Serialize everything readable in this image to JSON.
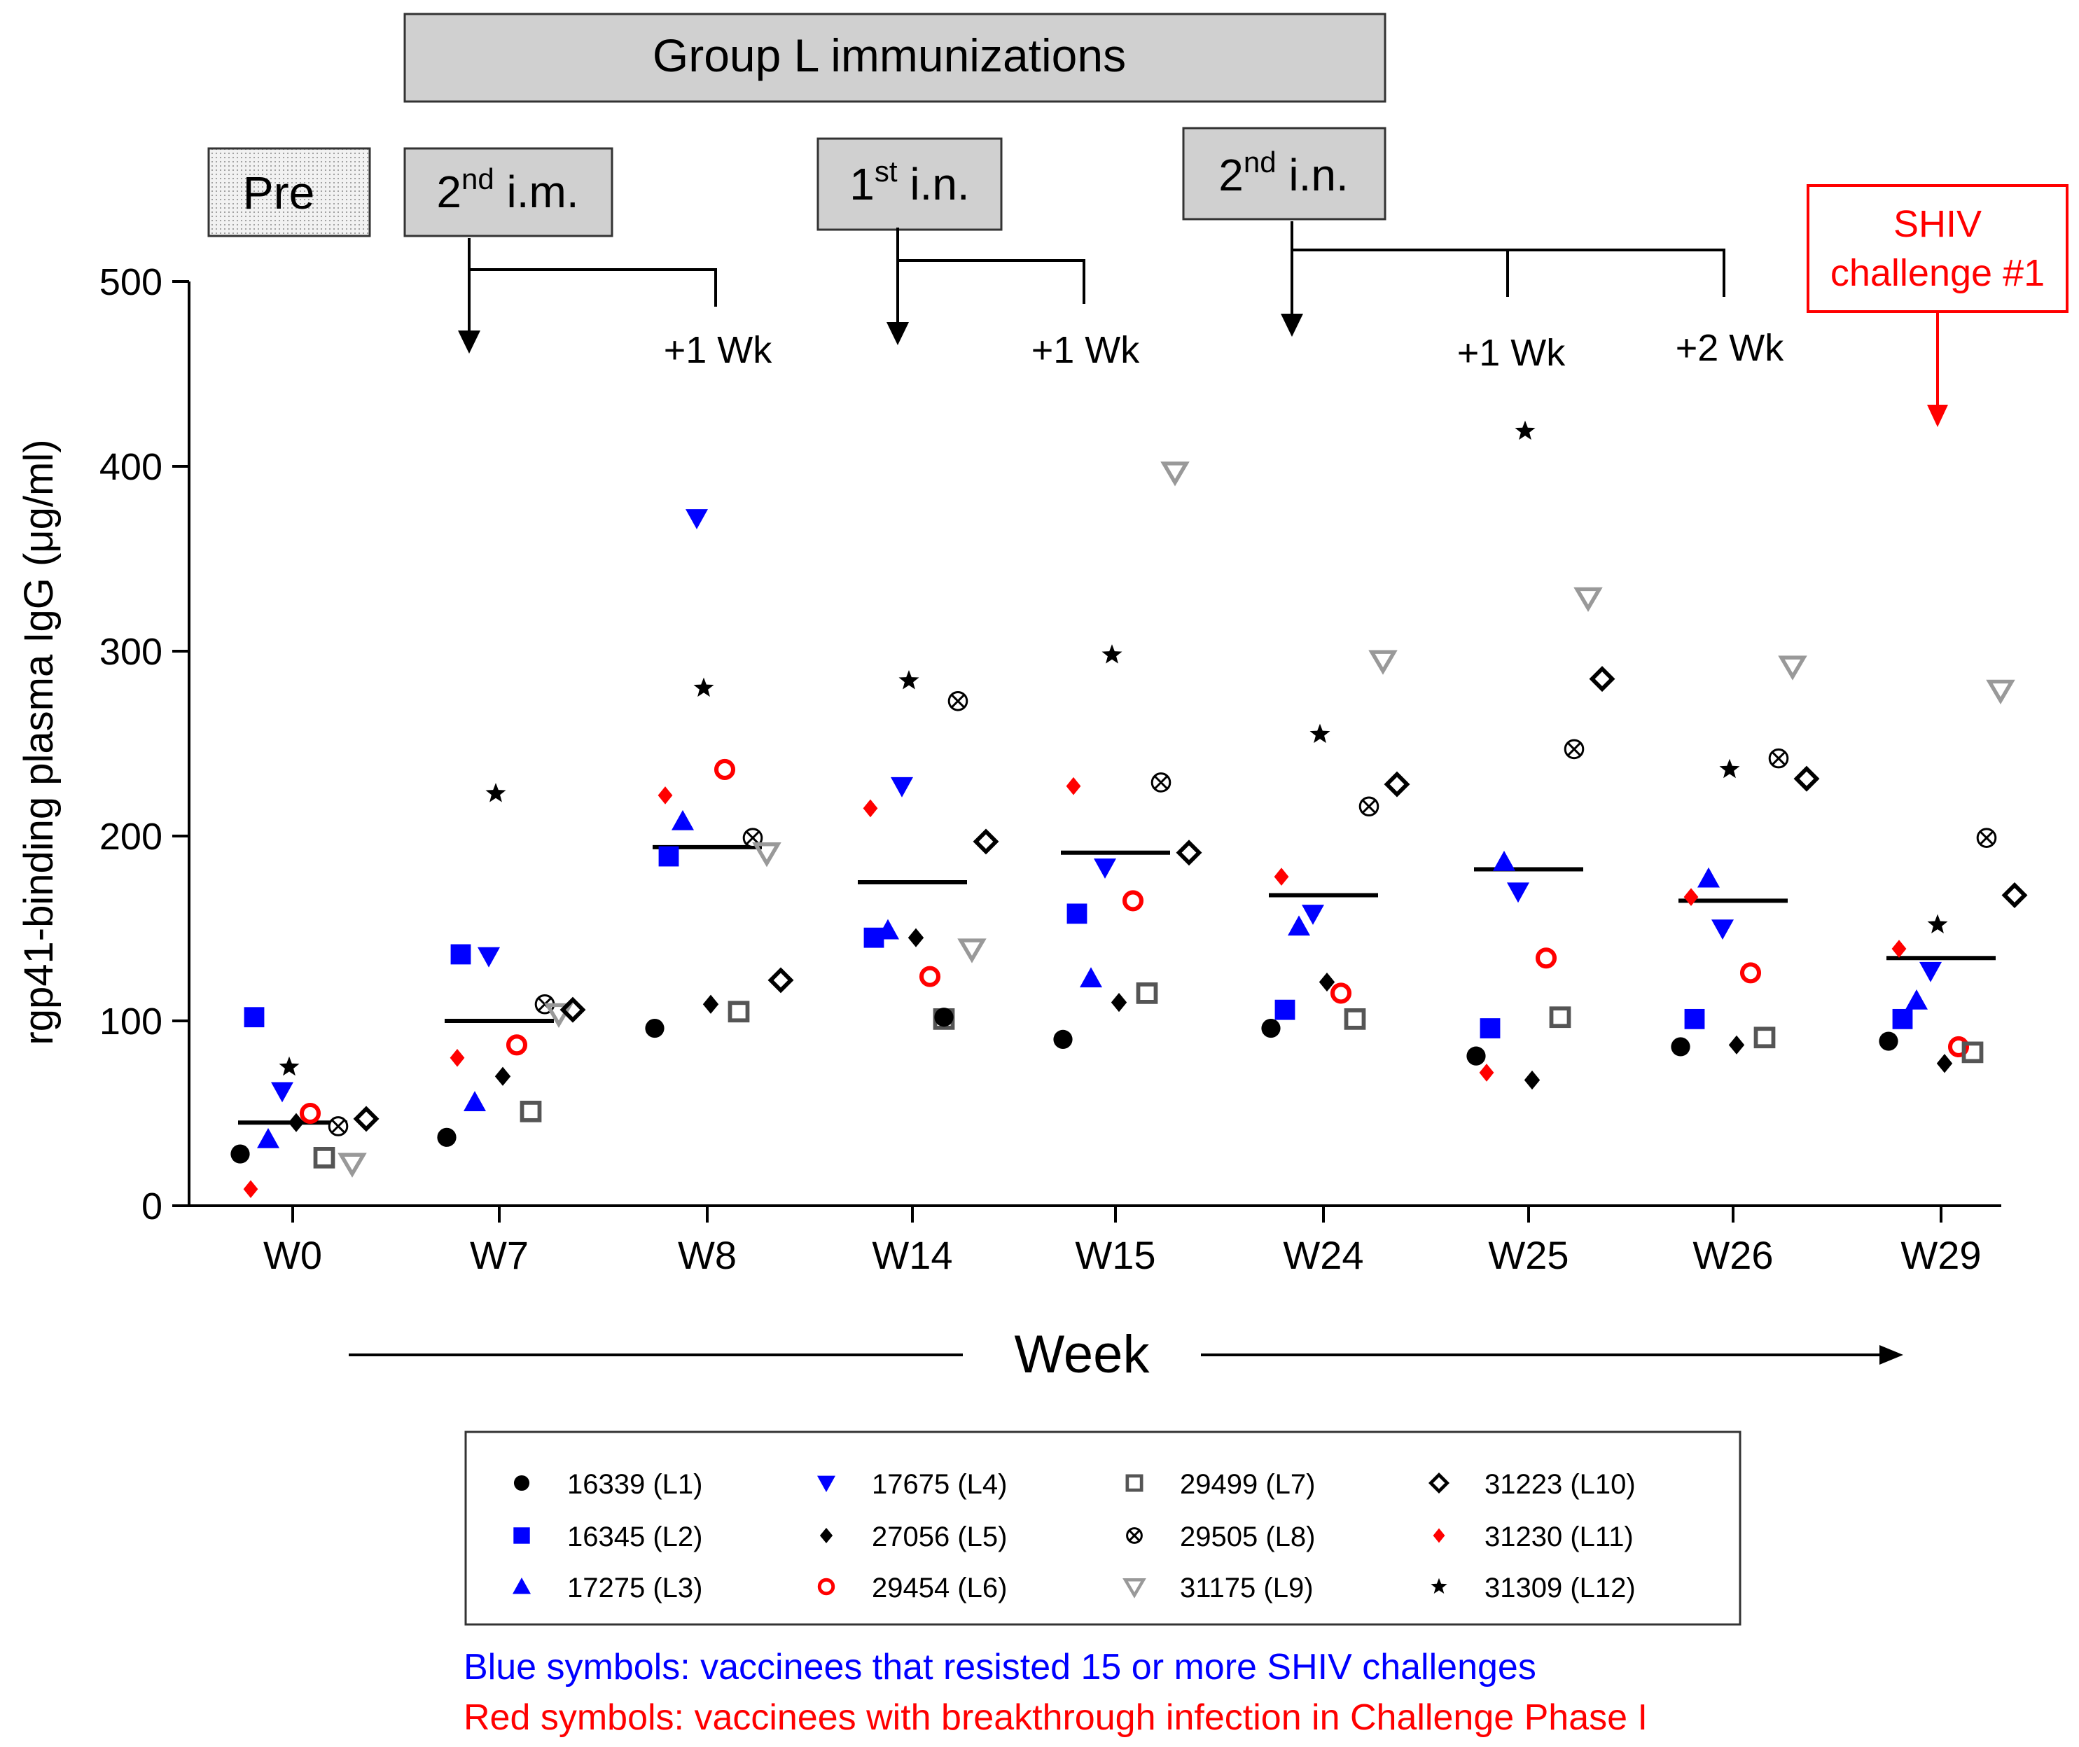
{
  "chart_data": {
    "type": "scatter",
    "title": "Group L immunizations",
    "ylabel": "rgp41-binding plasma IgG (μg/ml)",
    "xlabel": "Week",
    "ylim": [
      0,
      500
    ],
    "yticks": [
      0,
      100,
      200,
      300,
      400,
      500
    ],
    "categories": [
      "W0",
      "W7",
      "W8",
      "W14",
      "W15",
      "W24",
      "W25",
      "W26",
      "W29"
    ],
    "means": [
      45,
      100,
      194,
      175,
      191,
      168,
      182,
      165,
      134
    ],
    "stage_boxes": [
      {
        "id": "pre",
        "base": "Pre",
        "sup": "",
        "tail": ""
      },
      {
        "id": "im2",
        "base": "2",
        "sup": "nd",
        "tail": " i.m."
      },
      {
        "id": "in1",
        "base": "1",
        "sup": "st",
        "tail": " i.n."
      },
      {
        "id": "in2",
        "base": "2",
        "sup": "nd",
        "tail": " i.n."
      }
    ],
    "week_offsets": [
      "+1 Wk",
      "+1 Wk",
      "+1 Wk",
      "+2 Wk"
    ],
    "challenge_label": [
      "SHIV",
      "challenge #1"
    ],
    "series": [
      {
        "name": "16339 (L1)",
        "marker": "circle",
        "color": "#000000",
        "values": [
          28,
          37,
          96,
          null,
          90,
          96,
          81,
          86,
          89
        ]
      },
      {
        "name": "16345 (L2)",
        "marker": "square",
        "color": "#0000ff",
        "values": [
          102,
          136,
          189,
          145,
          158,
          106,
          96,
          101,
          101
        ]
      },
      {
        "name": "17275 (L3)",
        "marker": "triangle-up",
        "color": "#0000ff",
        "values": [
          36,
          56,
          208,
          149,
          123,
          151,
          186,
          177,
          111
        ]
      },
      {
        "name": "17675 (L4)",
        "marker": "triangle-down",
        "color": "#0000ff",
        "values": [
          62,
          135,
          372,
          227,
          183,
          158,
          170,
          150,
          127
        ]
      },
      {
        "name": "27056 (L5)",
        "marker": "diamond",
        "color": "#000000",
        "values": [
          45,
          70,
          109,
          145,
          110,
          121,
          68,
          87,
          77
        ]
      },
      {
        "name": "29454 (L6)",
        "marker": "circle-open",
        "color": "#ff0000",
        "values": [
          50,
          87,
          236,
          124,
          165,
          115,
          134,
          126,
          86
        ]
      },
      {
        "name": "29499 (L7)",
        "marker": "square-open",
        "color": "#555555",
        "values": [
          26,
          51,
          105,
          101,
          115,
          101,
          102,
          91,
          83
        ]
      },
      {
        "name": "29505 (L8)",
        "marker": "otimes",
        "color": "#000000",
        "values": [
          43,
          109,
          199,
          273,
          229,
          216,
          247,
          242,
          199
        ]
      },
      {
        "name": "31175 (L9)",
        "marker": "tri-down-open",
        "color": "#999999",
        "values": [
          23,
          104,
          191,
          139,
          397,
          295,
          329,
          292,
          279
        ]
      },
      {
        "name": "31223 (L10)",
        "marker": "diamond-open",
        "color": "#000000",
        "values": [
          47,
          106,
          122,
          197,
          191,
          228,
          285,
          231,
          168
        ]
      },
      {
        "name": "31230 (L11)",
        "marker": "diamond-small",
        "color": "#ff0000",
        "values": [
          9,
          80,
          222,
          215,
          227,
          178,
          72,
          167,
          139
        ]
      },
      {
        "name": "31309 (L12)",
        "marker": "star",
        "color": "#000000",
        "values": [
          75,
          223,
          280,
          284,
          298,
          255,
          419,
          236,
          152
        ]
      }
    ],
    "extra_points": [
      {
        "series": "16339 (L1)",
        "category": "W14",
        "value": 102
      }
    ],
    "notes": [
      {
        "text": "Blue symbols: vaccinees that resisted 15 or more SHIV challenges",
        "color": "#0000ff"
      },
      {
        "text": "Red symbols: vaccinees with breakthrough infection in Challenge Phase I",
        "color": "#ff0000"
      }
    ]
  }
}
